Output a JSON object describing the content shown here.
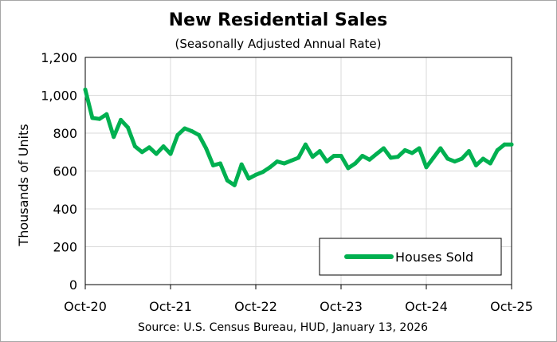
{
  "chart_data": {
    "type": "line",
    "title": "New Residential Sales",
    "subtitle": "(Seasonally Adjusted Annual Rate)",
    "ylabel": "Thousands of Units",
    "xlabel": "",
    "ylim": [
      0,
      1200
    ],
    "yticks": [
      0,
      200,
      400,
      600,
      800,
      1000,
      1200
    ],
    "ytick_labels": [
      "0",
      "200",
      "400",
      "600",
      "800",
      "1,000",
      "1,200"
    ],
    "xtick_labels": [
      "Oct-20",
      "Oct-21",
      "Oct-22",
      "Oct-23",
      "Oct-24",
      "Oct-25"
    ],
    "xtick_index": [
      0,
      12,
      24,
      36,
      48,
      60
    ],
    "grid": true,
    "legend_position": "bottom-right",
    "source": "Source:  U.S. Census Bureau, HUD, January 13, 2026",
    "line_color": "#00b050",
    "series": [
      {
        "name": "Houses Sold",
        "values": [
          1030,
          880,
          875,
          900,
          780,
          870,
          830,
          730,
          700,
          725,
          690,
          730,
          690,
          790,
          825,
          810,
          790,
          720,
          630,
          640,
          550,
          525,
          635,
          560,
          580,
          595,
          620,
          650,
          640,
          655,
          670,
          740,
          675,
          705,
          650,
          680,
          680,
          615,
          640,
          680,
          660,
          690,
          720,
          670,
          675,
          710,
          695,
          720,
          620,
          670,
          720,
          665,
          650,
          665,
          705,
          630,
          665,
          640,
          710,
          740,
          740
        ]
      }
    ]
  }
}
